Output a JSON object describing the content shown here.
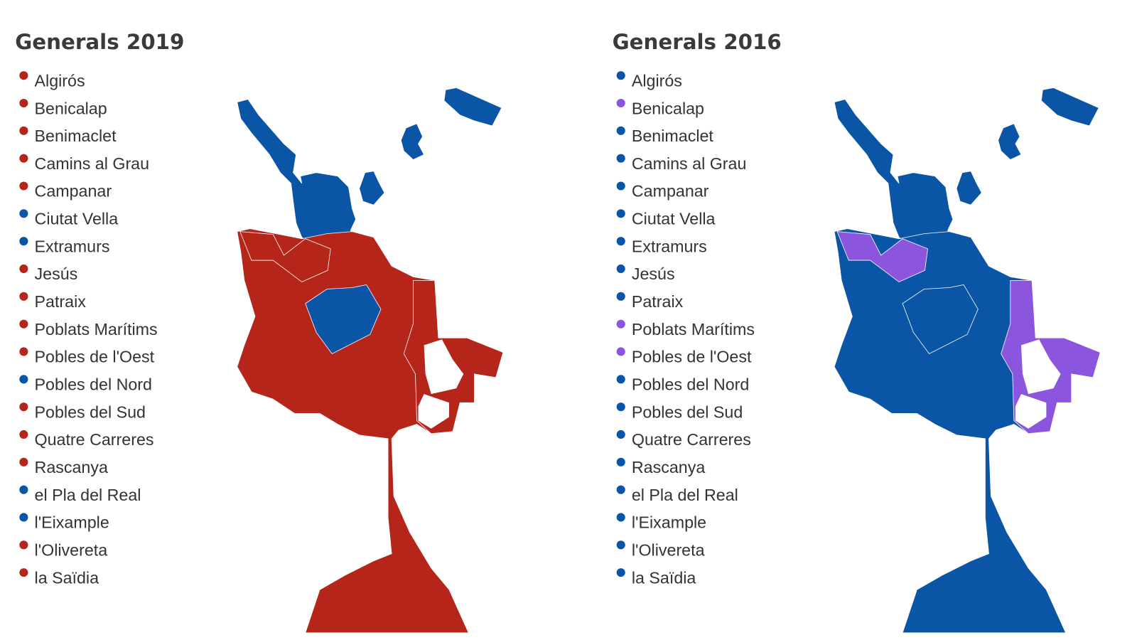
{
  "panels": [
    {
      "title": "Generals 2019",
      "districts": [
        {
          "name": "Algirós",
          "color": "#b5251a"
        },
        {
          "name": "Benicalap",
          "color": "#b5251a"
        },
        {
          "name": "Benimaclet",
          "color": "#b5251a"
        },
        {
          "name": "Camins al Grau",
          "color": "#b5251a"
        },
        {
          "name": "Campanar",
          "color": "#b5251a"
        },
        {
          "name": "Ciutat Vella",
          "color": "#0b55a6"
        },
        {
          "name": "Extramurs",
          "color": "#0b55a6"
        },
        {
          "name": "Jesús",
          "color": "#b5251a"
        },
        {
          "name": "Patraix",
          "color": "#b5251a"
        },
        {
          "name": "Poblats Marítims",
          "color": "#b5251a"
        },
        {
          "name": "Pobles de l'Oest",
          "color": "#b5251a"
        },
        {
          "name": "Pobles del Nord",
          "color": "#0b55a6"
        },
        {
          "name": "Pobles del Sud",
          "color": "#b5251a"
        },
        {
          "name": "Quatre Carreres",
          "color": "#b5251a"
        },
        {
          "name": "Rascanya",
          "color": "#b5251a"
        },
        {
          "name": "el Pla del Real",
          "color": "#0b55a6"
        },
        {
          "name": "l'Eixample",
          "color": "#0b55a6"
        },
        {
          "name": "l'Olivereta",
          "color": "#b5251a"
        },
        {
          "name": "la Saïdia",
          "color": "#b5251a"
        }
      ]
    },
    {
      "title": "Generals 2016",
      "districts": [
        {
          "name": "Algirós",
          "color": "#0b55a6"
        },
        {
          "name": "Benicalap",
          "color": "#8b55dd"
        },
        {
          "name": "Benimaclet",
          "color": "#0b55a6"
        },
        {
          "name": "Camins al Grau",
          "color": "#0b55a6"
        },
        {
          "name": "Campanar",
          "color": "#0b55a6"
        },
        {
          "name": "Ciutat Vella",
          "color": "#0b55a6"
        },
        {
          "name": "Extramurs",
          "color": "#0b55a6"
        },
        {
          "name": "Jesús",
          "color": "#0b55a6"
        },
        {
          "name": "Patraix",
          "color": "#0b55a6"
        },
        {
          "name": "Poblats Marítims",
          "color": "#8b55dd"
        },
        {
          "name": "Pobles de l'Oest",
          "color": "#8b55dd"
        },
        {
          "name": "Pobles del Nord",
          "color": "#0b55a6"
        },
        {
          "name": "Pobles del Sud",
          "color": "#0b55a6"
        },
        {
          "name": "Quatre Carreres",
          "color": "#0b55a6"
        },
        {
          "name": "Rascanya",
          "color": "#0b55a6"
        },
        {
          "name": "el Pla del Real",
          "color": "#0b55a6"
        },
        {
          "name": "l'Eixample",
          "color": "#0b55a6"
        },
        {
          "name": "l'Olivereta",
          "color": "#0b55a6"
        },
        {
          "name": "la Saïdia",
          "color": "#0b55a6"
        }
      ]
    }
  ]
}
